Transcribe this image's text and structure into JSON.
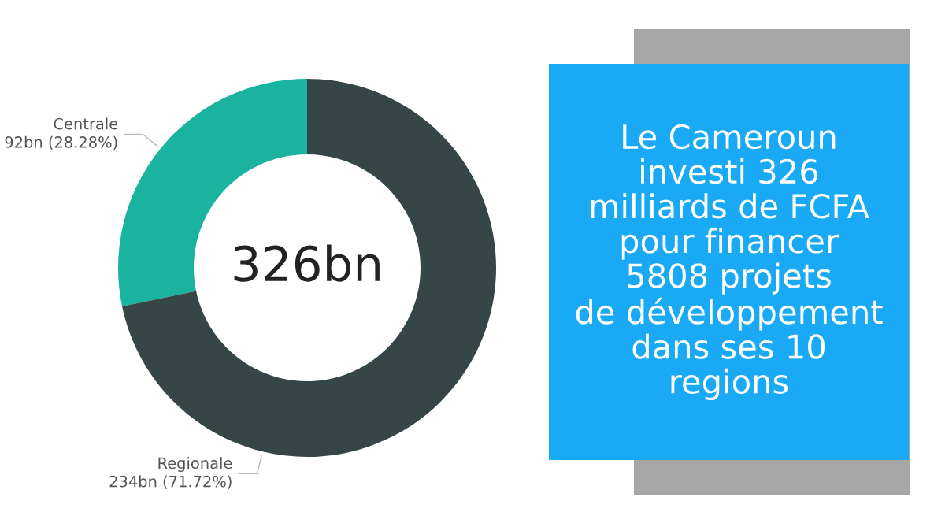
{
  "chart_data": {
    "type": "donut",
    "title": "Le Cameroun\ninvesti 326\nmilliards de FCFA\npour financer\n5808 projets\nde développement\ndans ses 10\nregions",
    "categories": [
      "Centrale",
      "Regionale"
    ],
    "values": [
      28.28,
      71.72
    ],
    "colors": [
      "#1ab3a0",
      "#364546"
    ],
    "value_labels": [
      "92bn (28.28%)",
      "234bn (71.72%)"
    ],
    "annotations": [
      "326bn"
    ],
    "legend": false
  }
}
